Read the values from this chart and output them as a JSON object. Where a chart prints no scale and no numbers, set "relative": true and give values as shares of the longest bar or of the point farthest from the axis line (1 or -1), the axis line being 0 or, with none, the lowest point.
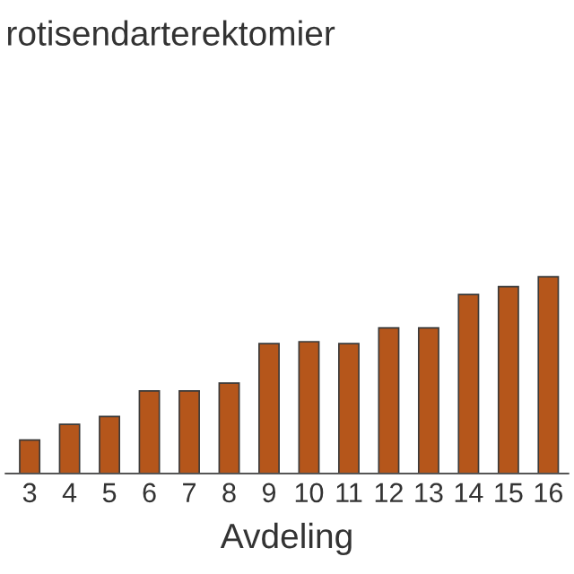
{
  "chart_data": {
    "type": "bar",
    "title": "rotisendarterektomier",
    "xlabel": "Avdeling",
    "categories": [
      "3",
      "4",
      "5",
      "6",
      "7",
      "8",
      "9",
      "10",
      "11",
      "12",
      "13",
      "14",
      "15",
      "16"
    ],
    "values": [
      0.17,
      0.25,
      0.29,
      0.42,
      0.42,
      0.46,
      0.66,
      0.67,
      0.66,
      0.74,
      0.74,
      0.91,
      0.95,
      1.0
    ],
    "color": "#b5561b",
    "relative": true,
    "grid": false,
    "legend": false
  }
}
